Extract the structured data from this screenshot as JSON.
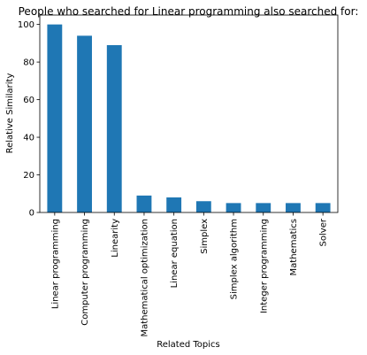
{
  "chart_data": {
    "type": "bar",
    "title": "People who searched for Linear programming also searched for:",
    "xlabel": "Related Topics",
    "ylabel": "Relative Similarity",
    "categories": [
      "Linear programming",
      "Computer programming",
      "Linearity",
      "Mathematical optimization",
      "Linear equation",
      "Simplex",
      "Simplex algorithm",
      "Integer programming",
      "Mathematics",
      "Solver"
    ],
    "values": [
      100,
      94,
      89,
      9,
      8,
      6,
      5,
      5,
      5,
      5
    ],
    "ylim": [
      0,
      105
    ],
    "yticks": [
      0,
      20,
      40,
      60,
      80,
      100
    ],
    "grid": false,
    "legend": false,
    "bar_color": "#1f77b4"
  }
}
